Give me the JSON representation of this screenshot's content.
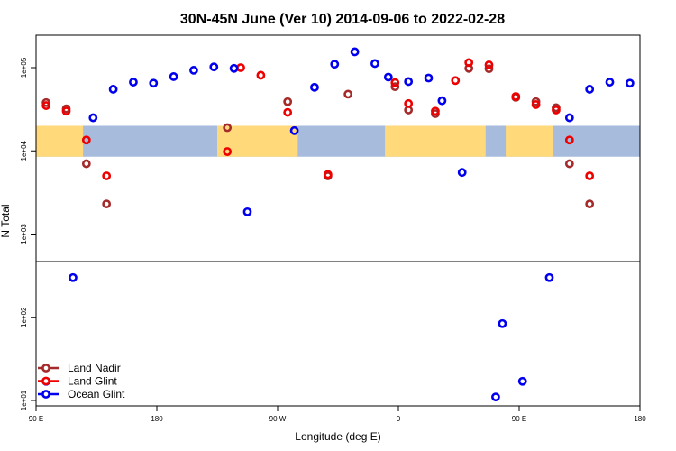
{
  "chart_data": {
    "type": "scatter",
    "title": "30N-45N June (Ver 10)   2014-09-06 to 2022-02-28",
    "xlabel": "Longitude (deg E)",
    "ylabel": "N Total",
    "x_axis": {
      "range_deg_east": [
        90,
        540
      ],
      "ticks": [
        {
          "value": 90,
          "label": "90 E"
        },
        {
          "value": 180,
          "label": "180"
        },
        {
          "value": 270,
          "label": "90 W"
        },
        {
          "value": 360,
          "label": "0"
        },
        {
          "value": 450,
          "label": "90 E"
        },
        {
          "value": 540,
          "label": "180"
        }
      ]
    },
    "y_axis": {
      "scale": "log10",
      "range": [
        10,
        300000
      ],
      "ticks": [
        {
          "value": 10,
          "label": "1e+01"
        },
        {
          "value": 100,
          "label": "1e+02"
        },
        {
          "value": 1000,
          "label": "1e+03"
        },
        {
          "value": 10000,
          "label": "1e+04"
        },
        {
          "value": 100000,
          "label": "1e+05"
        }
      ]
    },
    "grid": false,
    "legend_position": "bottom-left",
    "map_strip": {
      "y_range": [
        8500,
        20000
      ],
      "land_color": "#ffd97a",
      "ocean_color": "#a7bcdd"
    },
    "series": [
      {
        "name": "Land Nadir",
        "color": "#a52a2a",
        "points": [
          [
            97.5,
            38000
          ],
          [
            112.5,
            32000
          ],
          [
            127.5,
            7000
          ],
          [
            142.5,
            2300
          ],
          [
            232.5,
            19000
          ],
          [
            277.5,
            39000
          ],
          [
            307.5,
            5000
          ],
          [
            322.5,
            48000
          ],
          [
            357.5,
            59000
          ],
          [
            367.5,
            31000
          ],
          [
            387.5,
            28000
          ],
          [
            412.5,
            98000
          ],
          [
            427.5,
            97000
          ],
          [
            447.5,
            44000
          ],
          [
            462.5,
            39000
          ],
          [
            477.5,
            33000
          ],
          [
            487.5,
            7000
          ],
          [
            502.5,
            2300
          ]
        ]
      },
      {
        "name": "Land Glint",
        "color": "#ee0000",
        "points": [
          [
            97.5,
            35000
          ],
          [
            112.5,
            30000
          ],
          [
            127.5,
            13500
          ],
          [
            142.5,
            5000
          ],
          [
            232.5,
            9800
          ],
          [
            242.5,
            100000
          ],
          [
            257.5,
            81000
          ],
          [
            277.5,
            29000
          ],
          [
            307.5,
            5200
          ],
          [
            357.5,
            66000
          ],
          [
            367.5,
            37000
          ],
          [
            387.5,
            30000
          ],
          [
            402.5,
            70000
          ],
          [
            412.5,
            115000
          ],
          [
            427.5,
            108000
          ],
          [
            447.5,
            45000
          ],
          [
            462.5,
            36000
          ],
          [
            477.5,
            31000
          ],
          [
            487.5,
            13500
          ],
          [
            502.5,
            5000
          ]
        ]
      },
      {
        "name": "Ocean Glint",
        "color": "#0000ee",
        "points": [
          [
            97.5,
            17
          ],
          [
            117.5,
            300
          ],
          [
            132.5,
            25000
          ],
          [
            147.5,
            55000
          ],
          [
            162.5,
            67000
          ],
          [
            177.5,
            65000
          ],
          [
            192.5,
            78000
          ],
          [
            207.5,
            93000
          ],
          [
            222.5,
            102000
          ],
          [
            237.5,
            98000
          ],
          [
            247.5,
            1850
          ],
          [
            282.5,
            17500
          ],
          [
            297.5,
            58000
          ],
          [
            312.5,
            110000
          ],
          [
            327.5,
            155000
          ],
          [
            342.5,
            112000
          ],
          [
            352.5,
            77000
          ],
          [
            367.5,
            68000
          ],
          [
            382.5,
            75000
          ],
          [
            392.5,
            40000
          ],
          [
            407.5,
            5500
          ],
          [
            432.5,
            11
          ],
          [
            437.5,
            84
          ],
          [
            452.5,
            17
          ],
          [
            472.5,
            300
          ],
          [
            487.5,
            25000
          ],
          [
            502.5,
            55000
          ],
          [
            517.5,
            67000
          ],
          [
            532.5,
            65000
          ]
        ]
      }
    ]
  }
}
